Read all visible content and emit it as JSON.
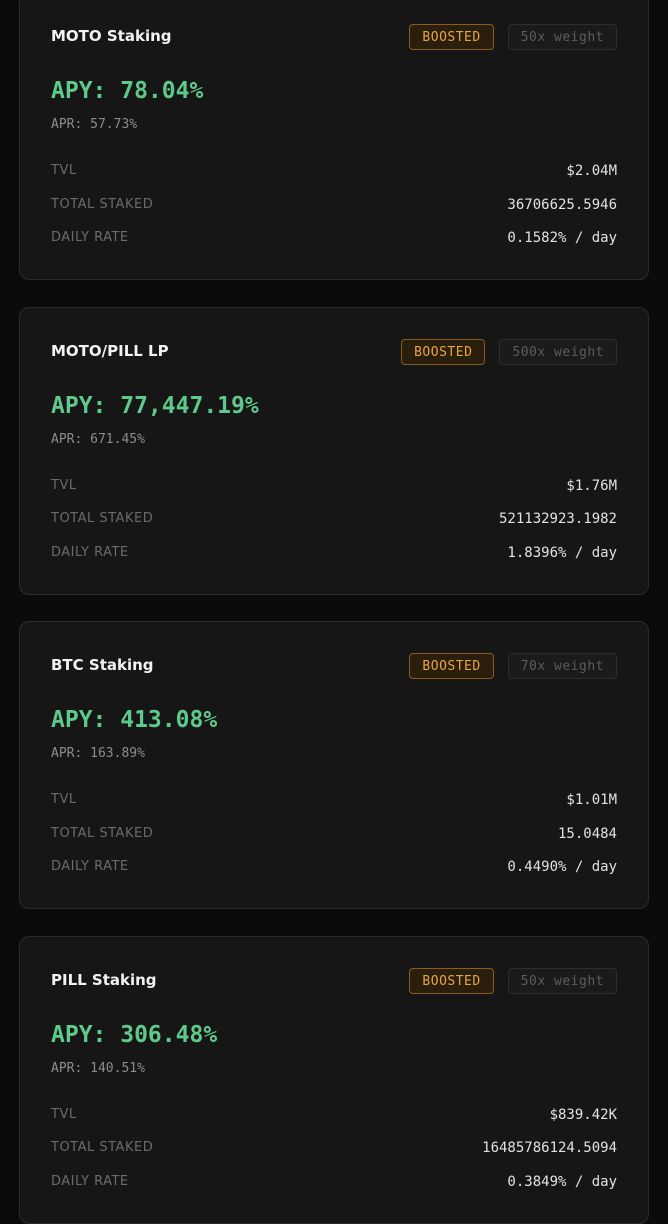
{
  "cards": [
    {
      "title": "MOTO Staking",
      "badge": "BOOSTED",
      "weight": "50x weight",
      "apy": "APY: 78.04%",
      "apr": "APR: 57.73%",
      "rows": [
        {
          "label": "TVL",
          "value": "$2.04M"
        },
        {
          "label": "TOTAL STAKED",
          "value": "36706625.5946"
        },
        {
          "label": "DAILY RATE",
          "value": "0.1582% / day"
        }
      ]
    },
    {
      "title": "MOTO/PILL LP",
      "badge": "BOOSTED",
      "weight": "500x weight",
      "apy": "APY: 77,447.19%",
      "apr": "APR: 671.45%",
      "rows": [
        {
          "label": "TVL",
          "value": "$1.76M"
        },
        {
          "label": "TOTAL STAKED",
          "value": "521132923.1982"
        },
        {
          "label": "DAILY RATE",
          "value": "1.8396% / day"
        }
      ]
    },
    {
      "title": "BTC Staking",
      "badge": "BOOSTED",
      "weight": "70x weight",
      "apy": "APY: 413.08%",
      "apr": "APR: 163.89%",
      "rows": [
        {
          "label": "TVL",
          "value": "$1.01M"
        },
        {
          "label": "TOTAL STAKED",
          "value": "15.0484"
        },
        {
          "label": "DAILY RATE",
          "value": "0.4490% / day"
        }
      ]
    },
    {
      "title": "PILL Staking",
      "badge": "BOOSTED",
      "weight": "50x weight",
      "apy": "APY: 306.48%",
      "apr": "APR: 140.51%",
      "rows": [
        {
          "label": "TVL",
          "value": "$839.42K"
        },
        {
          "label": "TOTAL STAKED",
          "value": "16485786124.5094"
        },
        {
          "label": "DAILY RATE",
          "value": "0.3849% / day"
        }
      ]
    }
  ]
}
